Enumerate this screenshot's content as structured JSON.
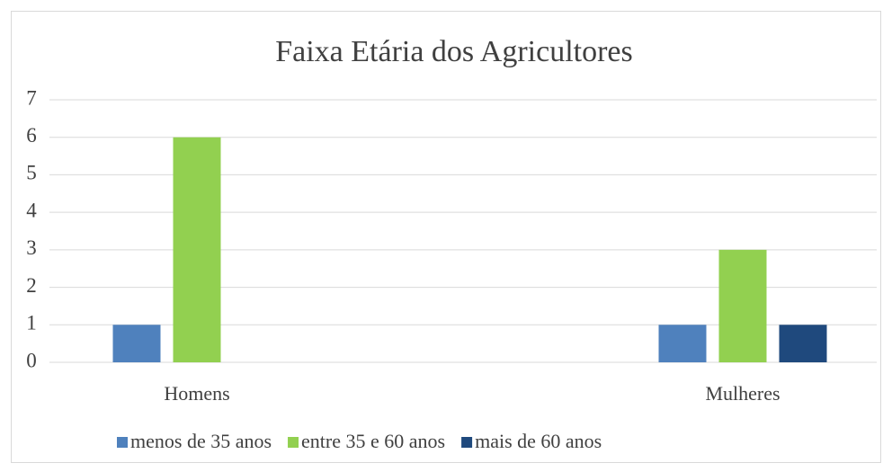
{
  "chart_data": {
    "type": "bar",
    "title": "Faixa Etária dos Agricultores",
    "categories": [
      "Homens",
      "Mulheres"
    ],
    "series": [
      {
        "name": "menos de 35 anos",
        "color": "#4f81bd",
        "values": [
          1,
          1
        ]
      },
      {
        "name": "entre 35 e 60 anos",
        "color": "#92d050",
        "values": [
          6,
          3
        ]
      },
      {
        "name": "mais de 60 anos",
        "color": "#1f497d",
        "values": [
          0,
          1
        ]
      }
    ],
    "ylim": [
      0,
      7
    ],
    "yticks": [
      0,
      1,
      2,
      3,
      4,
      5,
      6,
      7
    ],
    "grid": true,
    "legend": "bottom"
  }
}
